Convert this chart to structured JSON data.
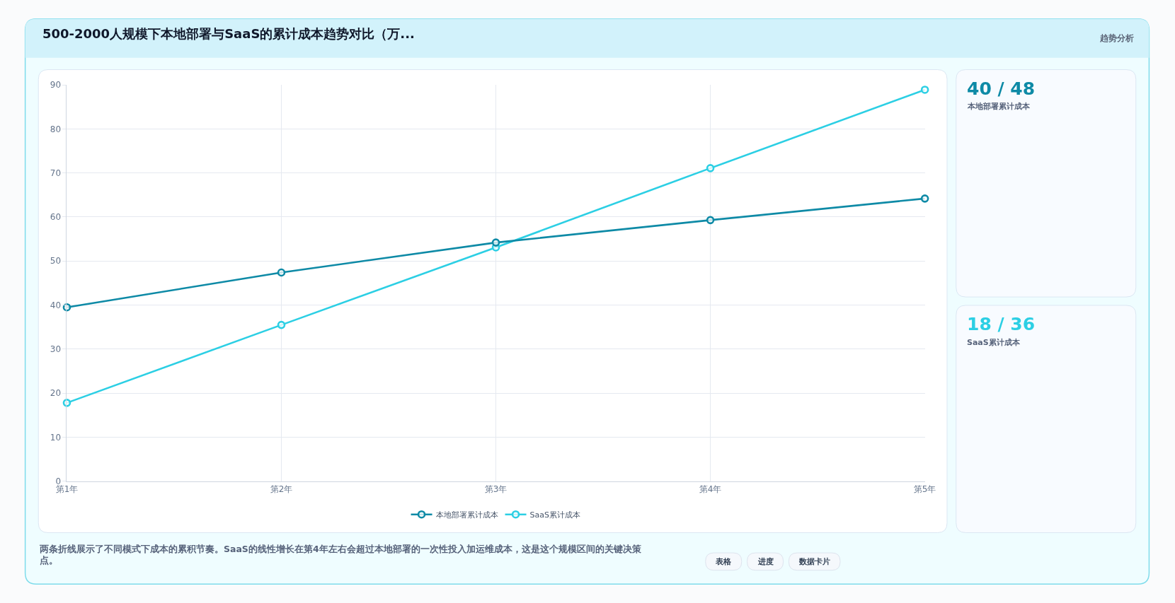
{
  "chart_data": [
    {
      "type": "line",
      "title": "500-2000人规模下本地部署与SaaS的累计成本趋势对比（万...",
      "categories": [
        "第1年",
        "第2年",
        "第3年",
        "第4年",
        "第5年"
      ],
      "series": [
        {
          "name": "本地部署累计成本",
          "color": "#0e8aa6",
          "values": [
            39.5,
            47.4,
            54.2,
            59.3,
            64.2
          ]
        },
        {
          "name": "SaaS累计成本",
          "color": "#2ccfe4",
          "values": [
            17.8,
            35.5,
            53.1,
            71.1,
            88.9
          ]
        }
      ],
      "ylim": [
        0,
        90
      ],
      "yticks": [
        0,
        10,
        20,
        30,
        40,
        50,
        60,
        70,
        80,
        90
      ],
      "grid": true,
      "legend": "bottom",
      "marker": "circle",
      "line_style": "solid",
      "annotations": [
        "趋势分析",
        "两条折线展示了不同模式下成本的累积节奏。SaaS的线性增长在第4年左右会超过本地部署的一次性投入加运维成本，这是这个规模区间的关键决策点。",
        "表格",
        "进度",
        "数据卡片"
      ]
    },
    {
      "type": "other",
      "title": "40 / 48",
      "subtitle": "本地部署累计成本"
    },
    {
      "type": "other",
      "title": "18 / 36",
      "subtitle": "SaaS累计成本"
    }
  ]
}
